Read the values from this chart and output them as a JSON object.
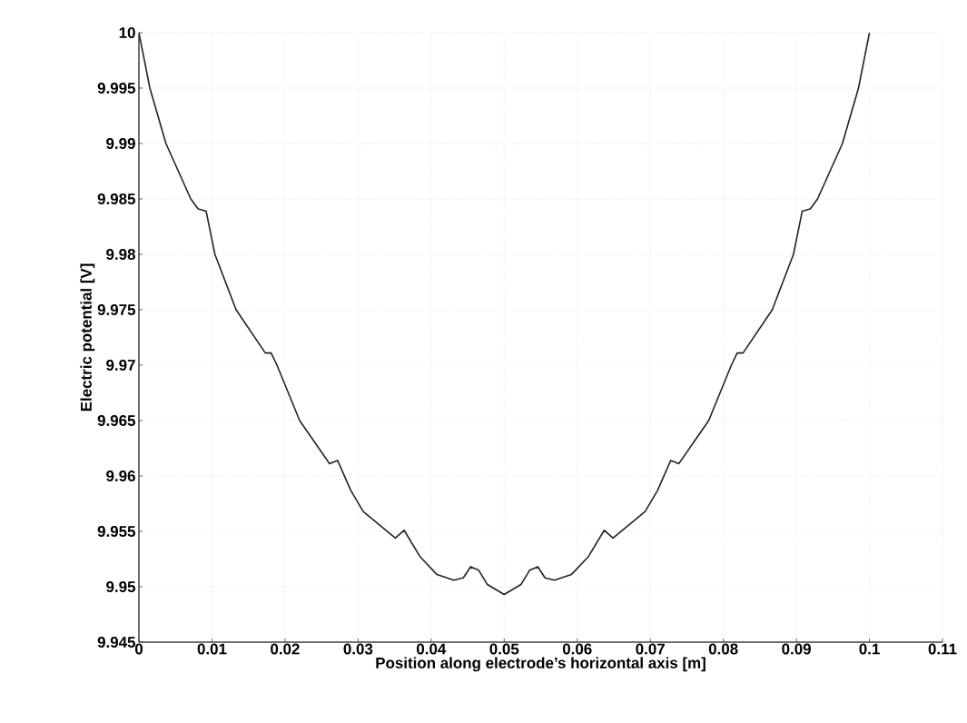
{
  "chart_data": {
    "type": "line",
    "xlabel": "Position along electrode’s horizontal axis [m]",
    "ylabel": "Electric potential [V]",
    "xlim": [
      0,
      0.11
    ],
    "ylim": [
      9.945,
      10
    ],
    "xticks": [
      0,
      0.01,
      0.02,
      0.03,
      0.04,
      0.05,
      0.06,
      0.07,
      0.08,
      0.09,
      0.1,
      0.11
    ],
    "yticks": [
      9.945,
      9.95,
      9.955,
      9.96,
      9.965,
      9.97,
      9.975,
      9.98,
      9.985,
      9.99,
      9.995,
      10
    ],
    "grid": true,
    "marker": "none",
    "line_style": "solid",
    "series": [
      {
        "color": "#222222",
        "x": [
          0,
          0.0015,
          0.0037,
          0.0071,
          0.0081,
          0.0092,
          0.0104,
          0.0133,
          0.0173,
          0.0181,
          0.0189,
          0.022,
          0.0261,
          0.0272,
          0.029,
          0.0307,
          0.0351,
          0.0363,
          0.0385,
          0.0408,
          0.0431,
          0.0444,
          0.0454,
          0.0465,
          0.0477,
          0.05,
          0.0523,
          0.0535,
          0.0546,
          0.0556,
          0.0569,
          0.0592,
          0.0615,
          0.0637,
          0.0649,
          0.0693,
          0.071,
          0.0728,
          0.0739,
          0.078,
          0.0811,
          0.0819,
          0.0827,
          0.0867,
          0.0896,
          0.0908,
          0.0919,
          0.0929,
          0.0963,
          0.0985,
          0.1
        ],
        "values": [
          10,
          9.995,
          9.99,
          9.985,
          9.9841,
          9.9839,
          9.98,
          9.975,
          9.9711,
          9.9711,
          9.97,
          9.965,
          9.9611,
          9.9614,
          9.9587,
          9.9568,
          9.9544,
          9.9551,
          9.9527,
          9.9511,
          9.9506,
          9.9508,
          9.9518,
          9.9515,
          9.9502,
          9.9493,
          9.9502,
          9.9515,
          9.9518,
          9.9508,
          9.9506,
          9.9511,
          9.9527,
          9.9551,
          9.9544,
          9.9568,
          9.9587,
          9.9614,
          9.9611,
          9.965,
          9.97,
          9.9711,
          9.9711,
          9.975,
          9.98,
          9.9839,
          9.9841,
          9.985,
          9.99,
          9.995,
          10
        ]
      }
    ]
  }
}
